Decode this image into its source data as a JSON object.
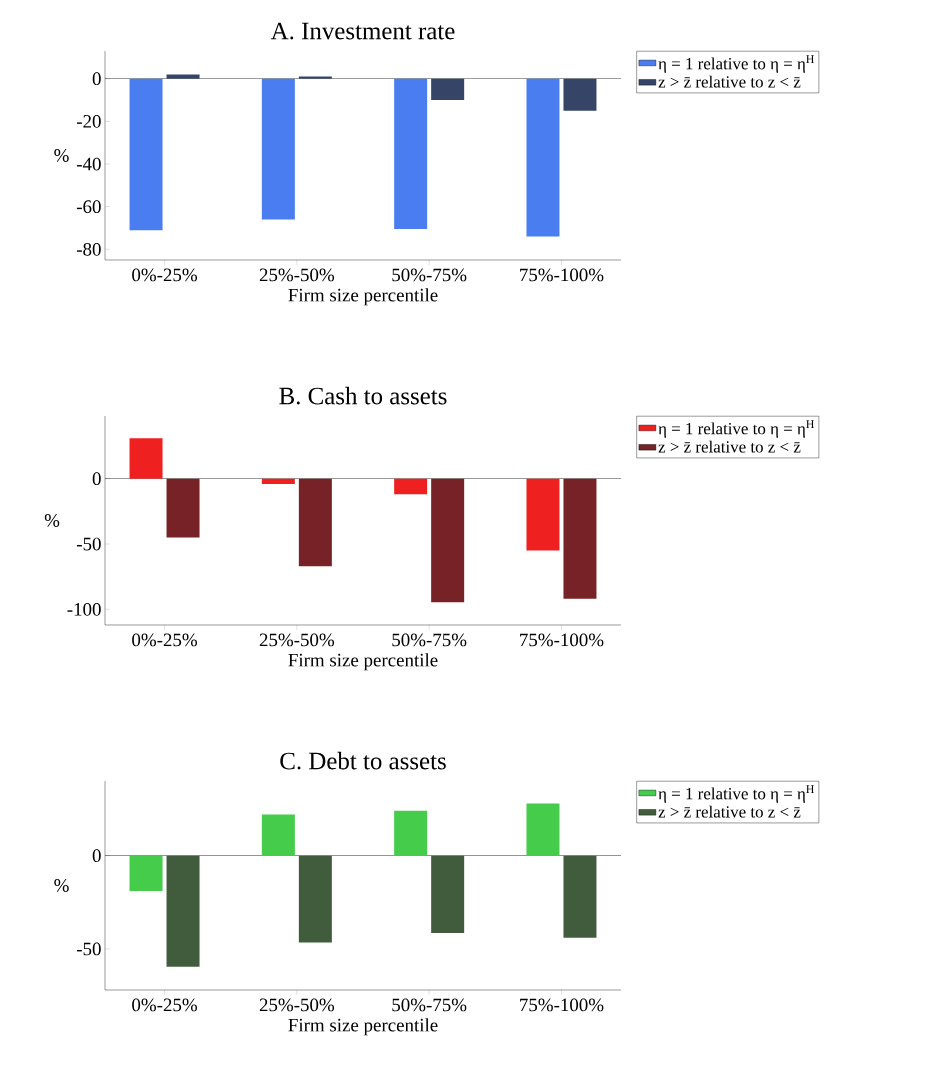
{
  "chart_data": [
    {
      "type": "bar",
      "title": "A. Investment rate",
      "xlabel": "Firm size percentile",
      "ylabel": "%",
      "categories": [
        "0%-25%",
        "25%-50%",
        "50%-75%",
        "75%-100%"
      ],
      "series": [
        {
          "name": "η = 1 relative to η = η$^{H}$",
          "color": "#4a7ef0",
          "values": [
            -71,
            -66,
            -70.5,
            -74
          ]
        },
        {
          "name": "z > z̄ relative to z < z̄",
          "color": "#354467",
          "values": [
            2,
            1,
            -10,
            -15
          ]
        }
      ],
      "ylim": [
        -85,
        13
      ],
      "yticks": [
        -80,
        -60,
        -40,
        -20,
        0
      ],
      "ref_lines": [
        {
          "axis": "y",
          "value": 0
        }
      ],
      "legend": "right"
    },
    {
      "type": "bar",
      "title": "B. Cash to assets",
      "xlabel": "Firm size percentile",
      "ylabel": "%",
      "categories": [
        "0%-25%",
        "25%-50%",
        "50%-75%",
        "75%-100%"
      ],
      "series": [
        {
          "name": "η = 1 relative to η = η$^{H}$",
          "color": "#ee2020",
          "values": [
            31,
            -4,
            -12,
            -55
          ]
        },
        {
          "name": "z > z̄ relative to z < z̄",
          "color": "#772226",
          "values": [
            -45,
            -67,
            -94.5,
            -92
          ]
        }
      ],
      "ylim": [
        -112,
        48
      ],
      "yticks": [
        -100,
        -50,
        0
      ],
      "ref_lines": [
        {
          "axis": "y",
          "value": 0
        }
      ],
      "legend": "right"
    },
    {
      "type": "bar",
      "title": "C. Debt to assets",
      "xlabel": "Firm size percentile",
      "ylabel": "%",
      "categories": [
        "0%-25%",
        "25%-50%",
        "50%-75%",
        "75%-100%"
      ],
      "series": [
        {
          "name": "η = 1 relative to η = η$^{H}$",
          "color": "#44cc4a",
          "values": [
            -19,
            22,
            24,
            28
          ]
        },
        {
          "name": "z > z̄ relative to z < z̄",
          "color": "#405c3d",
          "values": [
            -59.5,
            -46.5,
            -41.5,
            -44
          ]
        }
      ],
      "ylim": [
        -72,
        40
      ],
      "yticks": [
        -50,
        0
      ],
      "ref_lines": [
        {
          "axis": "y",
          "value": 0
        }
      ],
      "legend": "right"
    }
  ]
}
